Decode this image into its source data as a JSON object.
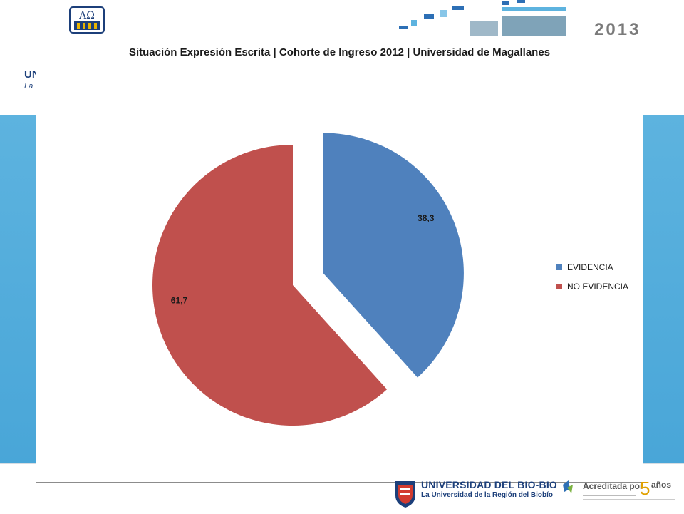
{
  "header": {
    "year": "2013",
    "brand_abbrev": "UN",
    "brand_sub": "La Uni"
  },
  "chart_data": {
    "type": "pie",
    "title": "Situación Expresión Escrita | Cohorte de Ingreso 2012 | Universidad de Magallanes",
    "categories": [
      "EVIDENCIA",
      "NO EVIDENCIA"
    ],
    "values": [
      38.3,
      61.7
    ],
    "data_labels": [
      "38,3",
      "61,7"
    ],
    "colors": [
      "#4f81bd",
      "#c0504d"
    ],
    "exploded": true,
    "legend_position": "right"
  },
  "footer": {
    "university_name": "UNIVERSIDAD DEL BIO-BIO",
    "university_tagline": "La Universidad de la Región del Biobío",
    "accreditation": "Acreditada por",
    "accreditation_years": "5",
    "accreditation_unit": "años"
  }
}
